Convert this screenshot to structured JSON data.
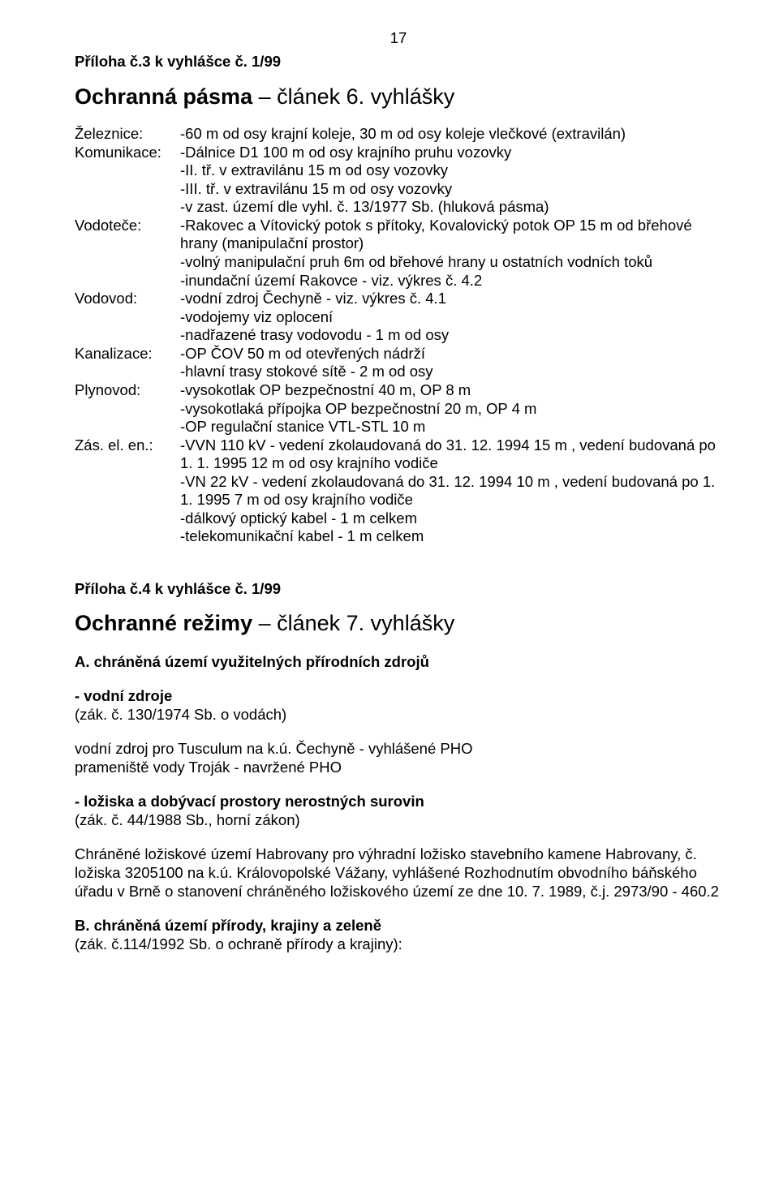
{
  "page_number": "17",
  "section3": {
    "sub": "Příloha č.3 k vyhlášce č.  1/99",
    "title_bold": "Ochranná pásma",
    "title_rest": " – článek 6.  vyhlášky",
    "rows": [
      {
        "label": "Železnice:",
        "lines": [
          "-60 m od osy krajní koleje, 30 m od osy koleje vlečkové (extravilán)"
        ]
      },
      {
        "label": "Komunikace:",
        "lines": [
          "-Dálnice D1 100 m od osy krajního pruhu vozovky",
          "-II. tř. v extravilánu 15 m od osy vozovky",
          "-III. tř. v extravilánu 15 m od osy vozovky",
          "-v zast. území dle vyhl. č. 13/1977 Sb. (hluková pásma)"
        ]
      },
      {
        "label": "Vodoteče:",
        "lines": [
          "-Rakovec a Vítovický potok s přítoky, Kovalovický potok OP 15 m od břehové hrany (manipulační prostor)",
          "-volný manipulační pruh 6m od břehové hrany u ostatních vodních toků",
          "-inundační území Rakovce - viz. výkres č. 4.2"
        ]
      },
      {
        "label": "Vodovod:",
        "lines": [
          "-vodní zdroj Čechyně - viz. výkres č. 4.1",
          "-vodojemy viz oplocení",
          "-nadřazené trasy vodovodu - 1 m od osy"
        ]
      },
      {
        "label": "Kanalizace:",
        "lines": [
          "-OP ČOV 50 m od otevřených nádrží",
          "-hlavní trasy stokové sítě - 2 m od osy"
        ]
      },
      {
        "label": "Plynovod:",
        "lines": [
          "-vysokotlak OP bezpečnostní 40 m, OP 8 m",
          "-vysokotlaká přípojka OP bezpečnostní 20 m, OP 4 m",
          "-OP regulační stanice VTL-STL 10 m"
        ]
      },
      {
        "label": "Zás. el. en.:",
        "lines": [
          "-VVN 110 kV - vedení zkolaudovaná do 31. 12. 1994 15 m , vedení budovaná po 1. 1. 1995 12 m od osy krajního vodiče",
          "-VN 22 kV - vedení zkolaudovaná do 31. 12. 1994 10 m , vedení budovaná po 1. 1. 1995 7 m od osy krajního vodiče",
          "-dálkový optický kabel - 1 m celkem",
          "-telekomunikační kabel - 1 m celkem"
        ]
      }
    ]
  },
  "section4": {
    "sub": "Příloha č.4 k vyhlášce č. 1/99",
    "title_bold": "Ochranné režimy",
    "title_rest": " – článek 7.  vyhlášky",
    "a_heading": "A. chráněná území využitelných přírodních zdrojů",
    "water_bold": "- vodní zdroje",
    "water_ref": "(zák. č. 130/1974 Sb. o vodách)",
    "water_lines": [
      "vodní zdroj pro Tusculum na k.ú. Čechyně - vyhlášené PHO",
      "prameniště vody Troják  - navržené PHO"
    ],
    "deposits_bold": "- ložiska a dobývací prostory nerostných surovin",
    "deposits_ref": "(zák. č. 44/1988 Sb., horní zákon)",
    "deposits_para": "Chráněné ložiskové území Habrovany pro výhradní ložisko stavebního kamene Habrovany, č. ložiska 3205100 na k.ú. Královopolské Vážany, vyhlášené Rozhodnutím obvodního báňského úřadu v Brně o stanovení chráněného ložiskového území ze dne 10. 7. 1989, č.j. 2973/90 - 460.2",
    "b_heading": "B. chráněná území přírody, krajiny a zeleně",
    "b_ref": "(zák.  č.114/1992 Sb. o ochraně přírody a krajiny):"
  }
}
